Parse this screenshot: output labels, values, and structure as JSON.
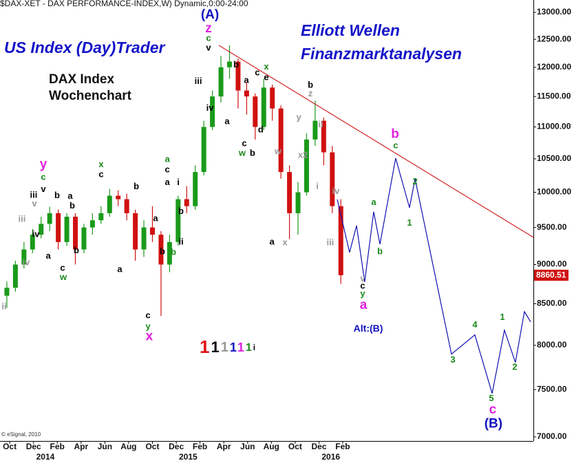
{
  "chart_data": {
    "type": "candlestick",
    "source": "($DAX-XET - DAX PERFORMANCE-INDEX,W) Dynamic,0:00-24:00",
    "title_left": "US Index (Day)Trader",
    "title_right": [
      "Elliott Wellen",
      "Finanzmarktanalysen"
    ],
    "subtitle": [
      "DAX Index",
      "Wochenchart"
    ],
    "copyright": "© eSignal, 2010",
    "log_scale": true,
    "ylim": [
      6958,
      13237
    ],
    "yticks": [
      {
        "value": 13000,
        "label": "13000.00"
      },
      {
        "value": 12500,
        "label": "12500.00"
      },
      {
        "value": 12000,
        "label": "12000.00"
      },
      {
        "value": 11500,
        "label": "11500.00"
      },
      {
        "value": 11000,
        "label": "11000.00"
      },
      {
        "value": 10500,
        "label": "10500.00"
      },
      {
        "value": 10000,
        "label": "10000.00"
      },
      {
        "value": 9500,
        "label": "9500.00"
      },
      {
        "value": 9000,
        "label": "9000.00"
      },
      {
        "value": 8500,
        "label": "8500.00"
      },
      {
        "value": 8000,
        "label": "8000.00"
      },
      {
        "value": 7500,
        "label": "7500.00"
      },
      {
        "value": 7000,
        "label": "7000.00"
      }
    ],
    "xlim": [
      2013.682,
      2017.419
    ],
    "xticks": [
      {
        "value": 2013.75,
        "label": "Oct"
      },
      {
        "value": 2013.917,
        "label": "Dec"
      },
      {
        "value": 2014.083,
        "label": "Feb"
      },
      {
        "value": 2014.25,
        "label": "Apr"
      },
      {
        "value": 2014.417,
        "label": "Jun"
      },
      {
        "value": 2014.583,
        "label": "Aug"
      },
      {
        "value": 2014.75,
        "label": "Oct"
      },
      {
        "value": 2014.917,
        "label": "Dec"
      },
      {
        "value": 2015.083,
        "label": "Feb"
      },
      {
        "value": 2015.25,
        "label": "Apr"
      },
      {
        "value": 2015.417,
        "label": "Jun"
      },
      {
        "value": 2015.583,
        "label": "Aug"
      },
      {
        "value": 2015.75,
        "label": "Oct"
      },
      {
        "value": 2015.917,
        "label": "Dec"
      },
      {
        "value": 2016.083,
        "label": "Feb"
      }
    ],
    "year_ticks": [
      2014,
      2015,
      2016
    ],
    "candles": {
      "up_color": "#1a9a1a",
      "down_color": "#d01010",
      "x": [
        2013.73,
        2013.79,
        2013.85,
        2013.91,
        2013.97,
        2014.03,
        2014.09,
        2014.15,
        2014.21,
        2014.27,
        2014.33,
        2014.39,
        2014.45,
        2014.51,
        2014.57,
        2014.63,
        2014.69,
        2014.75,
        2014.81,
        2014.87,
        2014.93,
        2014.99,
        2015.05,
        2015.11,
        2015.17,
        2015.23,
        2015.29,
        2015.35,
        2015.41,
        2015.47,
        2015.53,
        2015.59,
        2015.65,
        2015.71,
        2015.77,
        2015.83,
        2015.89,
        2015.95,
        2016.01,
        2016.07
      ],
      "open": [
        8600,
        8700,
        9000,
        9200,
        9400,
        9550,
        9700,
        9300,
        9650,
        9200,
        9500,
        9600,
        9700,
        9950,
        9900,
        9700,
        9200,
        9500,
        9400,
        9000,
        9300,
        9900,
        9800,
        10300,
        11000,
        11500,
        12000,
        12100,
        11600,
        11500,
        11000,
        11650,
        11300,
        10300,
        9700,
        10000,
        10800,
        11100,
        10600,
        9800
      ],
      "high": [
        8780,
        9050,
        9300,
        9480,
        9650,
        9790,
        9750,
        9700,
        9700,
        9550,
        9700,
        9800,
        10050,
        10030,
        9980,
        9750,
        9600,
        9800,
        9450,
        9400,
        9950,
        10090,
        10400,
        11100,
        11600,
        12200,
        12390,
        12150,
        11750,
        11550,
        11800,
        11700,
        11350,
        10400,
        10150,
        10900,
        11430,
        11150,
        10700,
        9900
      ],
      "low": [
        8450,
        8650,
        8950,
        9150,
        9350,
        9450,
        9200,
        9250,
        9000,
        9150,
        9400,
        9550,
        9650,
        9800,
        9600,
        9050,
        9100,
        9300,
        8350,
        8900,
        9250,
        9700,
        9750,
        10250,
        10950,
        11400,
        11800,
        11300,
        11200,
        10800,
        10950,
        11100,
        10200,
        9340,
        9400,
        9950,
        10700,
        10400,
        9700,
        8750
      ],
      "close": [
        8700,
        9000,
        9200,
        9400,
        9550,
        9700,
        9300,
        9650,
        9200,
        9500,
        9600,
        9700,
        9950,
        9900,
        9700,
        9200,
        9500,
        9400,
        9000,
        9300,
        9900,
        9800,
        10300,
        11000,
        11500,
        12000,
        12100,
        11600,
        11500,
        11000,
        11650,
        11300,
        10300,
        9700,
        10000,
        10800,
        11100,
        10600,
        9800,
        8860.51
      ]
    },
    "last_label": "8860.51",
    "lines": [
      {
        "color": "#d02020",
        "x": [
          2015.215,
          2017.419
        ],
        "values": [
          12390,
          9364
        ]
      },
      {
        "color": "#1010b0",
        "x": [
          2016.045,
          2016.131,
          2016.18,
          2016.237,
          2016.3,
          2016.344,
          2016.454,
          2016.551,
          2016.59,
          2016.845,
          2017.009,
          2017.13,
          2017.216,
          2017.293,
          2017.356,
          2017.4
        ],
        "values": [
          9897,
          9160,
          9525,
          8774,
          9719,
          9272,
          10510,
          9778,
          10198,
          7898,
          8122,
          7458,
          8178,
          7803,
          8403,
          8277
        ]
      }
    ],
    "annotations": [
      {
        "text": "(A)",
        "color": "#1010c0",
        "x": 2015.153,
        "y": 12950
      },
      {
        "text": "z",
        "color": "#e020e0",
        "x": 2015.143,
        "y": 12690
      },
      {
        "text": "c",
        "color": "#1a8a1a",
        "x": 2015.143,
        "y": 12510
      },
      {
        "text": "v",
        "color": "#000000",
        "x": 2015.143,
        "y": 12340
      },
      {
        "text": "iii",
        "color": "#000000",
        "x": 2015.071,
        "y": 11750
      },
      {
        "text": "iv",
        "color": "#000000",
        "x": 2015.153,
        "y": 11300
      },
      {
        "text": "b",
        "color": "#000000",
        "x": 2015.336,
        "y": 12040
      },
      {
        "text": "a",
        "color": "#000000",
        "x": 2015.273,
        "y": 11080
      },
      {
        "text": "a",
        "color": "#000000",
        "x": 2015.408,
        "y": 11770
      },
      {
        "text": "c",
        "color": "#000000",
        "x": 2015.485,
        "y": 11900
      },
      {
        "text": "x",
        "color": "#1a8a1a",
        "x": 2015.548,
        "y": 12000
      },
      {
        "text": "e",
        "color": "#000000",
        "x": 2015.548,
        "y": 11820
      },
      {
        "text": "d",
        "color": "#000000",
        "x": 2015.509,
        "y": 10950
      },
      {
        "text": "c",
        "color": "#000000",
        "x": 2015.394,
        "y": 10730
      },
      {
        "text": "w",
        "color": "#1a8a1a",
        "x": 2015.379,
        "y": 10580
      },
      {
        "text": "b",
        "color": "#000000",
        "x": 2015.451,
        "y": 10580
      },
      {
        "text": "a",
        "color": "#000000",
        "x": 2015.587,
        "y": 9300
      },
      {
        "text": "x",
        "color": "#999999",
        "x": 2015.678,
        "y": 9290
      },
      {
        "text": "w",
        "color": "#999999",
        "x": 2015.63,
        "y": 10610
      },
      {
        "text": "x2",
        "color": "#999999",
        "x": 2015.804,
        "y": 10550
      },
      {
        "text": "y",
        "color": "#999999",
        "x": 2015.775,
        "y": 11150
      },
      {
        "text": "b",
        "color": "#000000",
        "x": 2015.857,
        "y": 11690
      },
      {
        "text": "z",
        "color": "#999999",
        "x": 2015.857,
        "y": 11540
      },
      {
        "text": "ii",
        "color": "#999999",
        "x": 2015.929,
        "y": 11030
      },
      {
        "text": "i",
        "color": "#999999",
        "x": 2015.905,
        "y": 10080
      },
      {
        "text": "iv",
        "color": "#999999",
        "x": 2016.035,
        "y": 10010
      },
      {
        "text": "iii",
        "color": "#999999",
        "x": 2015.996,
        "y": 9290
      },
      {
        "text": "v",
        "color": "#999999",
        "x": 2016.223,
        "y": 8810
      },
      {
        "text": "c",
        "color": "#000000",
        "x": 2016.223,
        "y": 8720
      },
      {
        "text": "y",
        "color": "#1a8a1a",
        "x": 2016.223,
        "y": 8620
      },
      {
        "text": "a",
        "color": "#e020e0",
        "x": 2016.228,
        "y": 8480
      },
      {
        "text": "b",
        "color": "#e020e0",
        "x": 2016.45,
        "y": 10880
      },
      {
        "text": "c",
        "color": "#1a8a1a",
        "x": 2016.454,
        "y": 10700
      },
      {
        "text": "2",
        "color": "#1a8a1a",
        "x": 2016.59,
        "y": 10150
      },
      {
        "text": "1",
        "color": "#1a8a1a",
        "x": 2016.551,
        "y": 9560
      },
      {
        "text": "a",
        "color": "#1a8a1a",
        "x": 2016.3,
        "y": 9850
      },
      {
        "text": "b",
        "color": "#1a8a1a",
        "x": 2016.344,
        "y": 9170
      },
      {
        "text": "Alt:(B)",
        "color": "#1010c0",
        "x": 2016.262,
        "y": 8190
      },
      {
        "text": "3",
        "color": "#1a8a1a",
        "x": 2016.855,
        "y": 7830
      },
      {
        "text": "4",
        "color": "#1a8a1a",
        "x": 2017.009,
        "y": 8240
      },
      {
        "text": "1",
        "color": "#1a8a1a",
        "x": 2017.202,
        "y": 8330
      },
      {
        "text": "2",
        "color": "#1a8a1a",
        "x": 2017.289,
        "y": 7745
      },
      {
        "text": "5",
        "color": "#1a8a1a",
        "x": 2017.125,
        "y": 7400
      },
      {
        "text": "c",
        "color": "#e020e0",
        "x": 2017.134,
        "y": 7280
      },
      {
        "text": "(B)",
        "color": "#1010c0",
        "x": 2017.139,
        "y": 7130
      },
      {
        "text": "y",
        "color": "#e020e0",
        "x": 2013.986,
        "y": 10410
      },
      {
        "text": "c",
        "color": "#1a8a1a",
        "x": 2013.986,
        "y": 10220
      },
      {
        "text": "v",
        "color": "#000000",
        "x": 2013.986,
        "y": 10040
      },
      {
        "text": "iii",
        "color": "#000000",
        "x": 2013.918,
        "y": 9955
      },
      {
        "text": "v",
        "color": "#999999",
        "x": 2013.923,
        "y": 9830
      },
      {
        "text": "iii",
        "color": "#999999",
        "x": 2013.836,
        "y": 9610
      },
      {
        "text": "iv",
        "color": "#000000",
        "x": 2013.933,
        "y": 9400
      },
      {
        "text": "iv",
        "color": "#999999",
        "x": 2013.865,
        "y": 9020
      },
      {
        "text": "ii",
        "color": "#999999",
        "x": 2013.711,
        "y": 8460
      },
      {
        "text": "a",
        "color": "#000000",
        "x": 2014.02,
        "y": 9110
      },
      {
        "text": "b",
        "color": "#000000",
        "x": 2014.082,
        "y": 9950
      },
      {
        "text": "c",
        "color": "#000000",
        "x": 2014.121,
        "y": 8950
      },
      {
        "text": "w",
        "color": "#1a8a1a",
        "x": 2014.126,
        "y": 8830
      },
      {
        "text": "a",
        "color": "#000000",
        "x": 2014.174,
        "y": 9940
      },
      {
        "text": "b",
        "color": "#000000",
        "x": 2014.188,
        "y": 9800
      },
      {
        "text": "b",
        "color": "#000000",
        "x": 2014.217,
        "y": 9180
      },
      {
        "text": "x",
        "color": "#1a8a1a",
        "x": 2014.391,
        "y": 10410
      },
      {
        "text": "c",
        "color": "#000000",
        "x": 2014.391,
        "y": 10260
      },
      {
        "text": "b",
        "color": "#000000",
        "x": 2014.637,
        "y": 10080
      },
      {
        "text": "a",
        "color": "#000000",
        "x": 2014.521,
        "y": 8930
      },
      {
        "text": "a",
        "color": "#000000",
        "x": 2014.772,
        "y": 9620
      },
      {
        "text": "b",
        "color": "#000000",
        "x": 2014.82,
        "y": 9170
      },
      {
        "text": "c",
        "color": "#000000",
        "x": 2014.719,
        "y": 8350
      },
      {
        "text": "y",
        "color": "#1a8a1a",
        "x": 2014.719,
        "y": 8220
      },
      {
        "text": "x",
        "color": "#e020e0",
        "x": 2014.728,
        "y": 8100
      },
      {
        "text": "a",
        "color": "#1a8a1a",
        "x": 2014.854,
        "y": 10490
      },
      {
        "text": "c",
        "color": "#000000",
        "x": 2014.854,
        "y": 10330
      },
      {
        "text": "a",
        "color": "#000000",
        "x": 2014.854,
        "y": 10140
      },
      {
        "text": "i",
        "color": "#000000",
        "x": 2014.931,
        "y": 10140
      },
      {
        "text": "b",
        "color": "#000000",
        "x": 2014.95,
        "y": 9720
      },
      {
        "text": "ii",
        "color": "#000000",
        "x": 2014.95,
        "y": 9300
      },
      {
        "text": "b",
        "color": "#1a8a1a",
        "x": 2014.897,
        "y": 9160
      }
    ],
    "degree_legend": [
      {
        "text": "1",
        "color": "#e01010"
      },
      {
        "text": "1",
        "color": "#000000"
      },
      {
        "text": "1",
        "color": "#999999"
      },
      {
        "text": "1",
        "color": "#1010c0"
      },
      {
        "text": "1",
        "color": "#e020e0"
      },
      {
        "text": "1",
        "color": "#1a8a1a"
      },
      {
        "text": "i",
        "color": "#000000"
      }
    ]
  }
}
